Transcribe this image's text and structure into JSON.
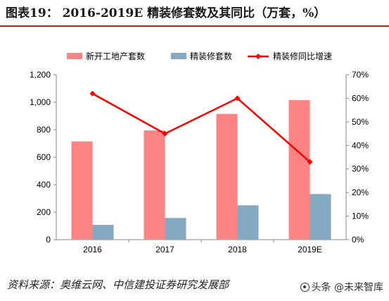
{
  "header": {
    "title": "图表19：  2016-2019E 精装修套数及其同比（万套，%）"
  },
  "footer": {
    "source": "资料来源：奥维云网、中信建投证券研究发展部",
    "watermark": "头条 @未来智库"
  },
  "colors": {
    "bar1": "#fe8484",
    "bar2": "#84aac2",
    "line": "#ff0000",
    "title_rule": "#b02525"
  },
  "chart_data": {
    "type": "bar",
    "categories": [
      "2016",
      "2017",
      "2018",
      "2019E"
    ],
    "series": [
      {
        "name": "新开工地产套数",
        "type": "bar",
        "axis": "left",
        "values": [
          715,
          795,
          915,
          1015
        ]
      },
      {
        "name": "精装修套数",
        "type": "bar",
        "axis": "left",
        "values": [
          108,
          158,
          250,
          332
        ]
      },
      {
        "name": "精装修同比增速",
        "type": "line",
        "axis": "right",
        "values": [
          0.62,
          0.45,
          0.6,
          0.33
        ]
      }
    ],
    "ylim_left": [
      0,
      1200
    ],
    "yticks_left": [
      "0",
      "200",
      "400",
      "600",
      "800",
      "1,000",
      "1,200"
    ],
    "ylim_right": [
      0,
      0.7
    ],
    "yticks_right": [
      "0%",
      "10%",
      "20%",
      "30%",
      "40%",
      "50%",
      "60%",
      "70%"
    ],
    "legend_position": "top",
    "grid": false
  }
}
